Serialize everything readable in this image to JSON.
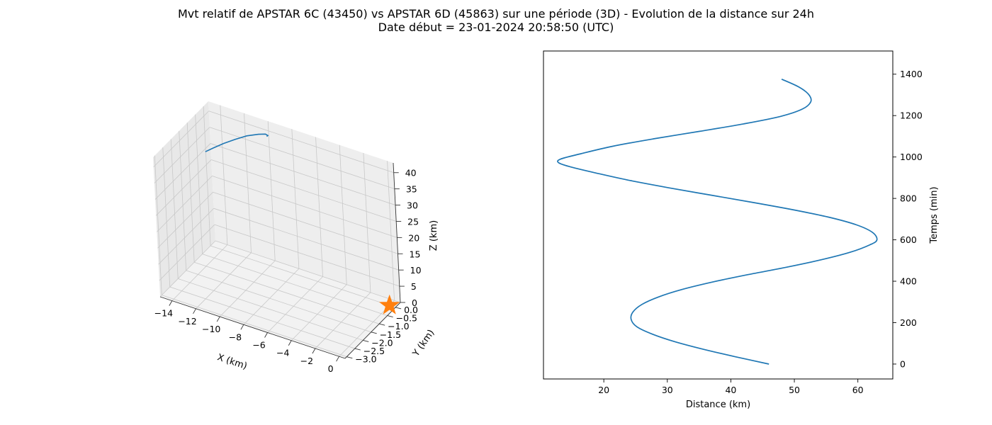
{
  "figure": {
    "title_line1": "Mvt relatif de APSTAR 6C (43450) vs APSTAR 6D (45863) sur une période (3D) - Evolution de la distance sur 24h",
    "title_line2": "Date début = 23-01-2024 20:58:50 (UTC)"
  },
  "chart_data": [
    {
      "type": "line",
      "subtype": "3d",
      "xlabel": "X (km)",
      "ylabel": "Y (km)",
      "zlabel": "Z (km)",
      "xlim": [
        -15,
        0.5
      ],
      "ylim": [
        -3.1,
        0.3
      ],
      "zlim": [
        0,
        43
      ],
      "xticks": [
        -14,
        -12,
        -10,
        -8,
        -6,
        -4,
        -2,
        0
      ],
      "xtick_labels": [
        "−14",
        "−12",
        "−10",
        "−8",
        "−6",
        "−4",
        "−2",
        "0"
      ],
      "yticks": [
        0.0,
        -0.5,
        -1.0,
        -1.5,
        -2.0,
        -2.5,
        -3.0
      ],
      "ytick_labels": [
        "0.0",
        "−0.5",
        "−1.0",
        "−1.5",
        "−2.0",
        "−2.5",
        "−3.0"
      ],
      "zticks": [
        0,
        5,
        10,
        15,
        20,
        25,
        30,
        35,
        40
      ],
      "ztick_labels": [
        "0",
        "5",
        "10",
        "15",
        "20",
        "25",
        "30",
        "35",
        "40"
      ],
      "grid": true,
      "series": [
        {
          "kind": "line",
          "color": "#1f77b4",
          "x": [
            -14.6,
            -13.9,
            -13.0,
            -12.0,
            -11.0,
            -10.0,
            -9.4,
            -9.2,
            -9.3
          ],
          "y": [
            -0.3,
            -0.3,
            -0.3,
            -0.3,
            -0.3,
            -0.3,
            -0.3,
            -0.3,
            -0.3
          ],
          "z": [
            31.0,
            33.0,
            35.5,
            38.0,
            40.3,
            42.0,
            42.8,
            42.6,
            42.2
          ]
        },
        {
          "kind": "marker",
          "marker": "star",
          "color": "#ff7f0e",
          "x": [
            0.0
          ],
          "y": [
            0.0
          ],
          "z": [
            0.0
          ]
        }
      ]
    },
    {
      "type": "line",
      "xlabel": "Distance (km)",
      "ylabel": "Temps (min)",
      "y_axis_side": "right",
      "xlim": [
        10.5,
        65.5
      ],
      "ylim": [
        -72,
        1512
      ],
      "xticks": [
        20,
        30,
        40,
        50,
        60
      ],
      "yticks": [
        0,
        200,
        400,
        600,
        800,
        1000,
        1200,
        1400
      ],
      "grid": false,
      "series": [
        {
          "color": "#1f77b4",
          "distance_km": [
            46.0,
            40.6,
            35.6,
            31.2,
            27.7,
            25.2,
            24.3,
            24.6,
            26.0,
            28.6,
            32.3,
            37.1,
            42.7,
            48.8,
            54.3,
            58.8,
            61.9,
            63.0,
            62.3,
            59.8,
            55.6,
            50.0,
            43.6,
            36.8,
            30.1,
            23.9,
            18.6,
            14.8,
            12.9,
            13.2,
            16.4,
            21.4,
            27.9,
            35.1,
            42.0,
            47.8,
            51.3,
            52.6,
            52.2,
            50.6,
            48.0
          ],
          "time_min": [
            0,
            36,
            72,
            108,
            144,
            180,
            216,
            252,
            288,
            324,
            360,
            396,
            432,
            468,
            504,
            540,
            576,
            600,
            636,
            672,
            708,
            744,
            780,
            816,
            852,
            888,
            924,
            952,
            972,
            990,
            1016,
            1052,
            1088,
            1124,
            1160,
            1196,
            1232,
            1268,
            1304,
            1340,
            1376
          ]
        }
      ]
    }
  ]
}
